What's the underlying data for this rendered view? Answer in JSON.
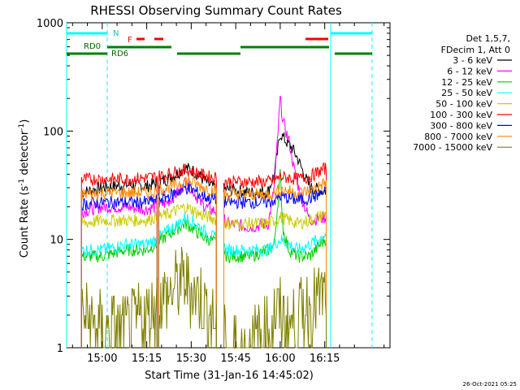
{
  "chart_data": {
    "type": "line",
    "title": "RHESSI Observing Summary Count Rates",
    "xlabel": "Start Time (31-Jan-16 14:45:02)",
    "ylabel": "Count Rate (s",
    "ylabel_sup": "-1",
    "ylabel_tail": " detector",
    "ylabel_sup2": "-1",
    "ylabel_close": ")",
    "yscale": "log",
    "ylim": [
      1,
      1000
    ],
    "xlim_minutes": [
      -12,
      97
    ],
    "y_tick_labels": [
      "1",
      "10",
      "100",
      "1000"
    ],
    "y_tick_values": [
      1,
      10,
      100,
      1000
    ],
    "x_tick_labels": [
      "15:00",
      "15:15",
      "15:30",
      "15:45",
      "16:00",
      "16:15"
    ],
    "x_tick_minutes": [
      0,
      15,
      30,
      45,
      60,
      75
    ],
    "legend_header": [
      "Det 1,5,7,",
      "FDecim 1, Att 0"
    ],
    "timestamp": "26-Oct-2021 05:25",
    "series": [
      {
        "name": "3 - 6 keV",
        "color": "#000000",
        "values": [
          [
            -7,
            27
          ],
          [
            0,
            30
          ],
          [
            8,
            32
          ],
          [
            15,
            31
          ],
          [
            18,
            33
          ],
          [
            22,
            36
          ],
          [
            26,
            42
          ],
          [
            28,
            46
          ],
          [
            30,
            44
          ],
          [
            33,
            38
          ],
          [
            36,
            32
          ],
          [
            39,
            29
          ],
          [
            42,
            29
          ],
          [
            50,
            27
          ],
          [
            56,
            28
          ],
          [
            58,
            40
          ],
          [
            60,
            95
          ],
          [
            62,
            80
          ],
          [
            64,
            70
          ],
          [
            66,
            55
          ],
          [
            68,
            40
          ],
          [
            70,
            30
          ],
          [
            75,
            28
          ]
        ]
      },
      {
        "name": "6 - 12 keV",
        "color": "#ff00ff",
        "values": [
          [
            -7,
            18
          ],
          [
            0,
            20
          ],
          [
            8,
            20
          ],
          [
            15,
            19
          ],
          [
            18,
            20
          ],
          [
            22,
            22
          ],
          [
            26,
            28
          ],
          [
            28,
            34
          ],
          [
            30,
            30
          ],
          [
            33,
            22
          ],
          [
            36,
            19
          ],
          [
            39,
            18
          ],
          [
            42,
            14
          ],
          [
            50,
            13
          ],
          [
            56,
            14
          ],
          [
            58,
            30
          ],
          [
            60,
            200
          ],
          [
            61,
            120
          ],
          [
            63,
            80
          ],
          [
            65,
            40
          ],
          [
            67,
            25
          ],
          [
            70,
            15
          ],
          [
            75,
            16
          ]
        ]
      },
      {
        "name": "12 - 25 keV",
        "color": "#00cc00",
        "values": [
          [
            -7,
            7
          ],
          [
            0,
            7
          ],
          [
            8,
            8
          ],
          [
            15,
            8
          ],
          [
            18,
            9
          ],
          [
            22,
            11
          ],
          [
            26,
            13
          ],
          [
            28,
            14
          ],
          [
            30,
            13
          ],
          [
            33,
            11
          ],
          [
            36,
            10
          ],
          [
            39,
            9
          ],
          [
            42,
            7
          ],
          [
            50,
            7
          ],
          [
            56,
            8
          ],
          [
            58,
            9
          ],
          [
            60,
            40
          ],
          [
            61,
            12
          ],
          [
            63,
            8
          ],
          [
            66,
            7
          ],
          [
            70,
            7
          ],
          [
            75,
            10
          ]
        ]
      },
      {
        "name": "25 - 50 keV",
        "color": "#00ffff",
        "values": [
          [
            -7,
            8
          ],
          [
            0,
            8
          ],
          [
            8,
            9
          ],
          [
            15,
            9
          ],
          [
            18,
            10
          ],
          [
            22,
            12
          ],
          [
            26,
            14
          ],
          [
            28,
            16
          ],
          [
            30,
            15
          ],
          [
            33,
            13
          ],
          [
            36,
            11
          ],
          [
            39,
            10
          ],
          [
            42,
            8
          ],
          [
            50,
            8
          ],
          [
            56,
            8
          ],
          [
            58,
            9
          ],
          [
            60,
            10
          ],
          [
            63,
            9
          ],
          [
            66,
            8
          ],
          [
            70,
            9
          ],
          [
            75,
            11
          ]
        ]
      },
      {
        "name": "50 - 100 keV",
        "color": "#cccc00",
        "values": [
          [
            -7,
            14
          ],
          [
            0,
            15
          ],
          [
            8,
            15
          ],
          [
            15,
            15
          ],
          [
            18,
            16
          ],
          [
            22,
            17
          ],
          [
            26,
            19
          ],
          [
            28,
            20
          ],
          [
            30,
            19
          ],
          [
            33,
            17
          ],
          [
            36,
            16
          ],
          [
            39,
            15
          ],
          [
            42,
            14
          ],
          [
            50,
            14
          ],
          [
            56,
            14
          ],
          [
            58,
            15
          ],
          [
            60,
            16
          ],
          [
            63,
            15
          ],
          [
            66,
            14
          ],
          [
            70,
            15
          ],
          [
            75,
            17
          ]
        ]
      },
      {
        "name": "100 - 300 keV",
        "color": "#ff0000",
        "values": [
          [
            -7,
            36
          ],
          [
            0,
            36
          ],
          [
            8,
            36
          ],
          [
            15,
            37
          ],
          [
            18,
            38
          ],
          [
            22,
            40
          ],
          [
            26,
            43
          ],
          [
            28,
            44
          ],
          [
            30,
            43
          ],
          [
            33,
            40
          ],
          [
            36,
            38
          ],
          [
            39,
            37
          ],
          [
            42,
            34
          ],
          [
            50,
            34
          ],
          [
            56,
            34
          ],
          [
            58,
            35
          ],
          [
            60,
            38
          ],
          [
            63,
            37
          ],
          [
            66,
            36
          ],
          [
            70,
            38
          ],
          [
            75,
            45
          ]
        ]
      },
      {
        "name": "300 - 800 keV",
        "color": "#0000ff",
        "values": [
          [
            -7,
            21
          ],
          [
            0,
            22
          ],
          [
            8,
            22
          ],
          [
            15,
            22
          ],
          [
            18,
            23
          ],
          [
            22,
            25
          ],
          [
            26,
            28
          ],
          [
            28,
            30
          ],
          [
            30,
            29
          ],
          [
            33,
            26
          ],
          [
            36,
            24
          ],
          [
            39,
            23
          ],
          [
            42,
            22
          ],
          [
            50,
            22
          ],
          [
            56,
            22
          ],
          [
            58,
            23
          ],
          [
            60,
            25
          ],
          [
            63,
            24
          ],
          [
            66,
            23
          ],
          [
            70,
            24
          ],
          [
            75,
            27
          ]
        ]
      },
      {
        "name": "800 - 7000 keV",
        "color": "#ff8800",
        "values": [
          [
            -7,
            26
          ],
          [
            0,
            27
          ],
          [
            8,
            27
          ],
          [
            15,
            27
          ],
          [
            18,
            28
          ],
          [
            22,
            30
          ],
          [
            26,
            33
          ],
          [
            28,
            35
          ],
          [
            30,
            34
          ],
          [
            33,
            31
          ],
          [
            36,
            29
          ],
          [
            39,
            28
          ],
          [
            42,
            26
          ],
          [
            50,
            26
          ],
          [
            56,
            26
          ],
          [
            58,
            27
          ],
          [
            60,
            29
          ],
          [
            63,
            28
          ],
          [
            66,
            27
          ],
          [
            70,
            28
          ],
          [
            75,
            33
          ]
        ]
      },
      {
        "name": "7000 - 15000 keV",
        "color": "#808000",
        "values": [
          [
            -7,
            2
          ],
          [
            0,
            1.5
          ],
          [
            8,
            1.5
          ],
          [
            15,
            2
          ],
          [
            18,
            2.5
          ],
          [
            22,
            3
          ],
          [
            26,
            4
          ],
          [
            28,
            4
          ],
          [
            30,
            3.5
          ],
          [
            33,
            3
          ],
          [
            36,
            2
          ],
          [
            39,
            1.5
          ],
          [
            42,
            1
          ],
          [
            50,
            1
          ],
          [
            56,
            1.5
          ],
          [
            58,
            2
          ],
          [
            60,
            2
          ],
          [
            63,
            1.5
          ],
          [
            66,
            2
          ],
          [
            70,
            2.5
          ],
          [
            75,
            3
          ]
        ]
      }
    ],
    "annotations": {
      "night_label": "N",
      "flare_label": "F",
      "rd0_label": "RD0",
      "rd6_label": "RD6"
    }
  }
}
